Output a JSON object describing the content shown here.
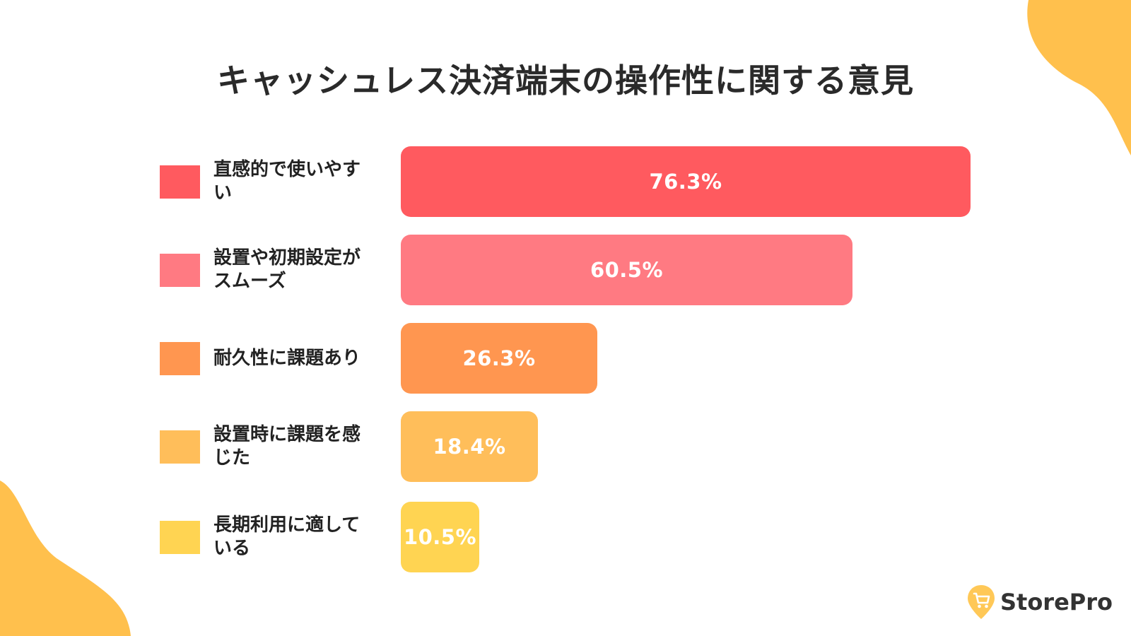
{
  "title": "キャッシュレス決済端末の操作性に関する意見",
  "logo": {
    "text": "StorePro",
    "icon": "cart-pin-icon",
    "color": "#FFC857"
  },
  "colors": {
    "blob": "#FFC04D"
  },
  "chart_data": {
    "type": "bar",
    "orientation": "horizontal",
    "title": "キャッシュレス決済端末の操作性に関する意見",
    "unit": "%",
    "xlim": [
      0,
      76.3
    ],
    "categories": [
      "直感的で使いやすい",
      "設置や初期設定がスムーズ",
      "耐久性に課題あり",
      "設置時に課題を感じた",
      "長期利用に適している"
    ],
    "values": [
      76.3,
      60.5,
      26.3,
      18.4,
      10.5
    ],
    "value_labels": [
      "76.3%",
      "60.5%",
      "26.3%",
      "18.4%",
      "10.5%"
    ],
    "colors": [
      "#FF5A5F",
      "#FF7A82",
      "#FF9650",
      "#FFBE5A",
      "#FFD452"
    ]
  }
}
